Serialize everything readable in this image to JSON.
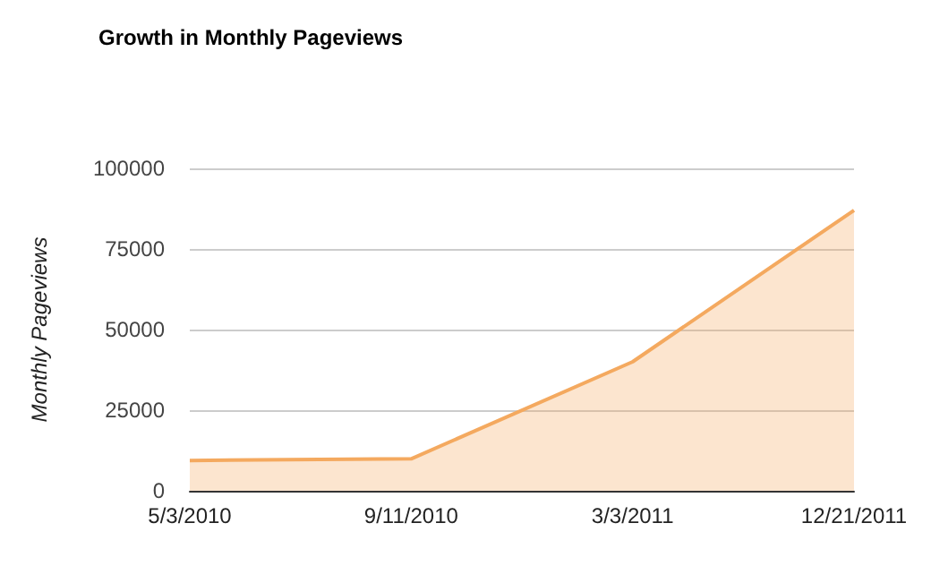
{
  "chart_data": {
    "type": "area",
    "title": "Growth in Monthly Pageviews",
    "ylabel": "Monthly Pageviews",
    "categories": [
      "5/3/2010",
      "9/11/2010",
      "3/3/2011",
      "12/21/2011"
    ],
    "series": [
      {
        "color": "#f4a95f",
        "values": [
          9400,
          9900,
          40000,
          87000
        ]
      }
    ],
    "ylim": [
      0,
      100000
    ],
    "yticks": [
      0,
      25000,
      50000,
      75000,
      100000
    ],
    "grid": "y",
    "marker": "none"
  }
}
